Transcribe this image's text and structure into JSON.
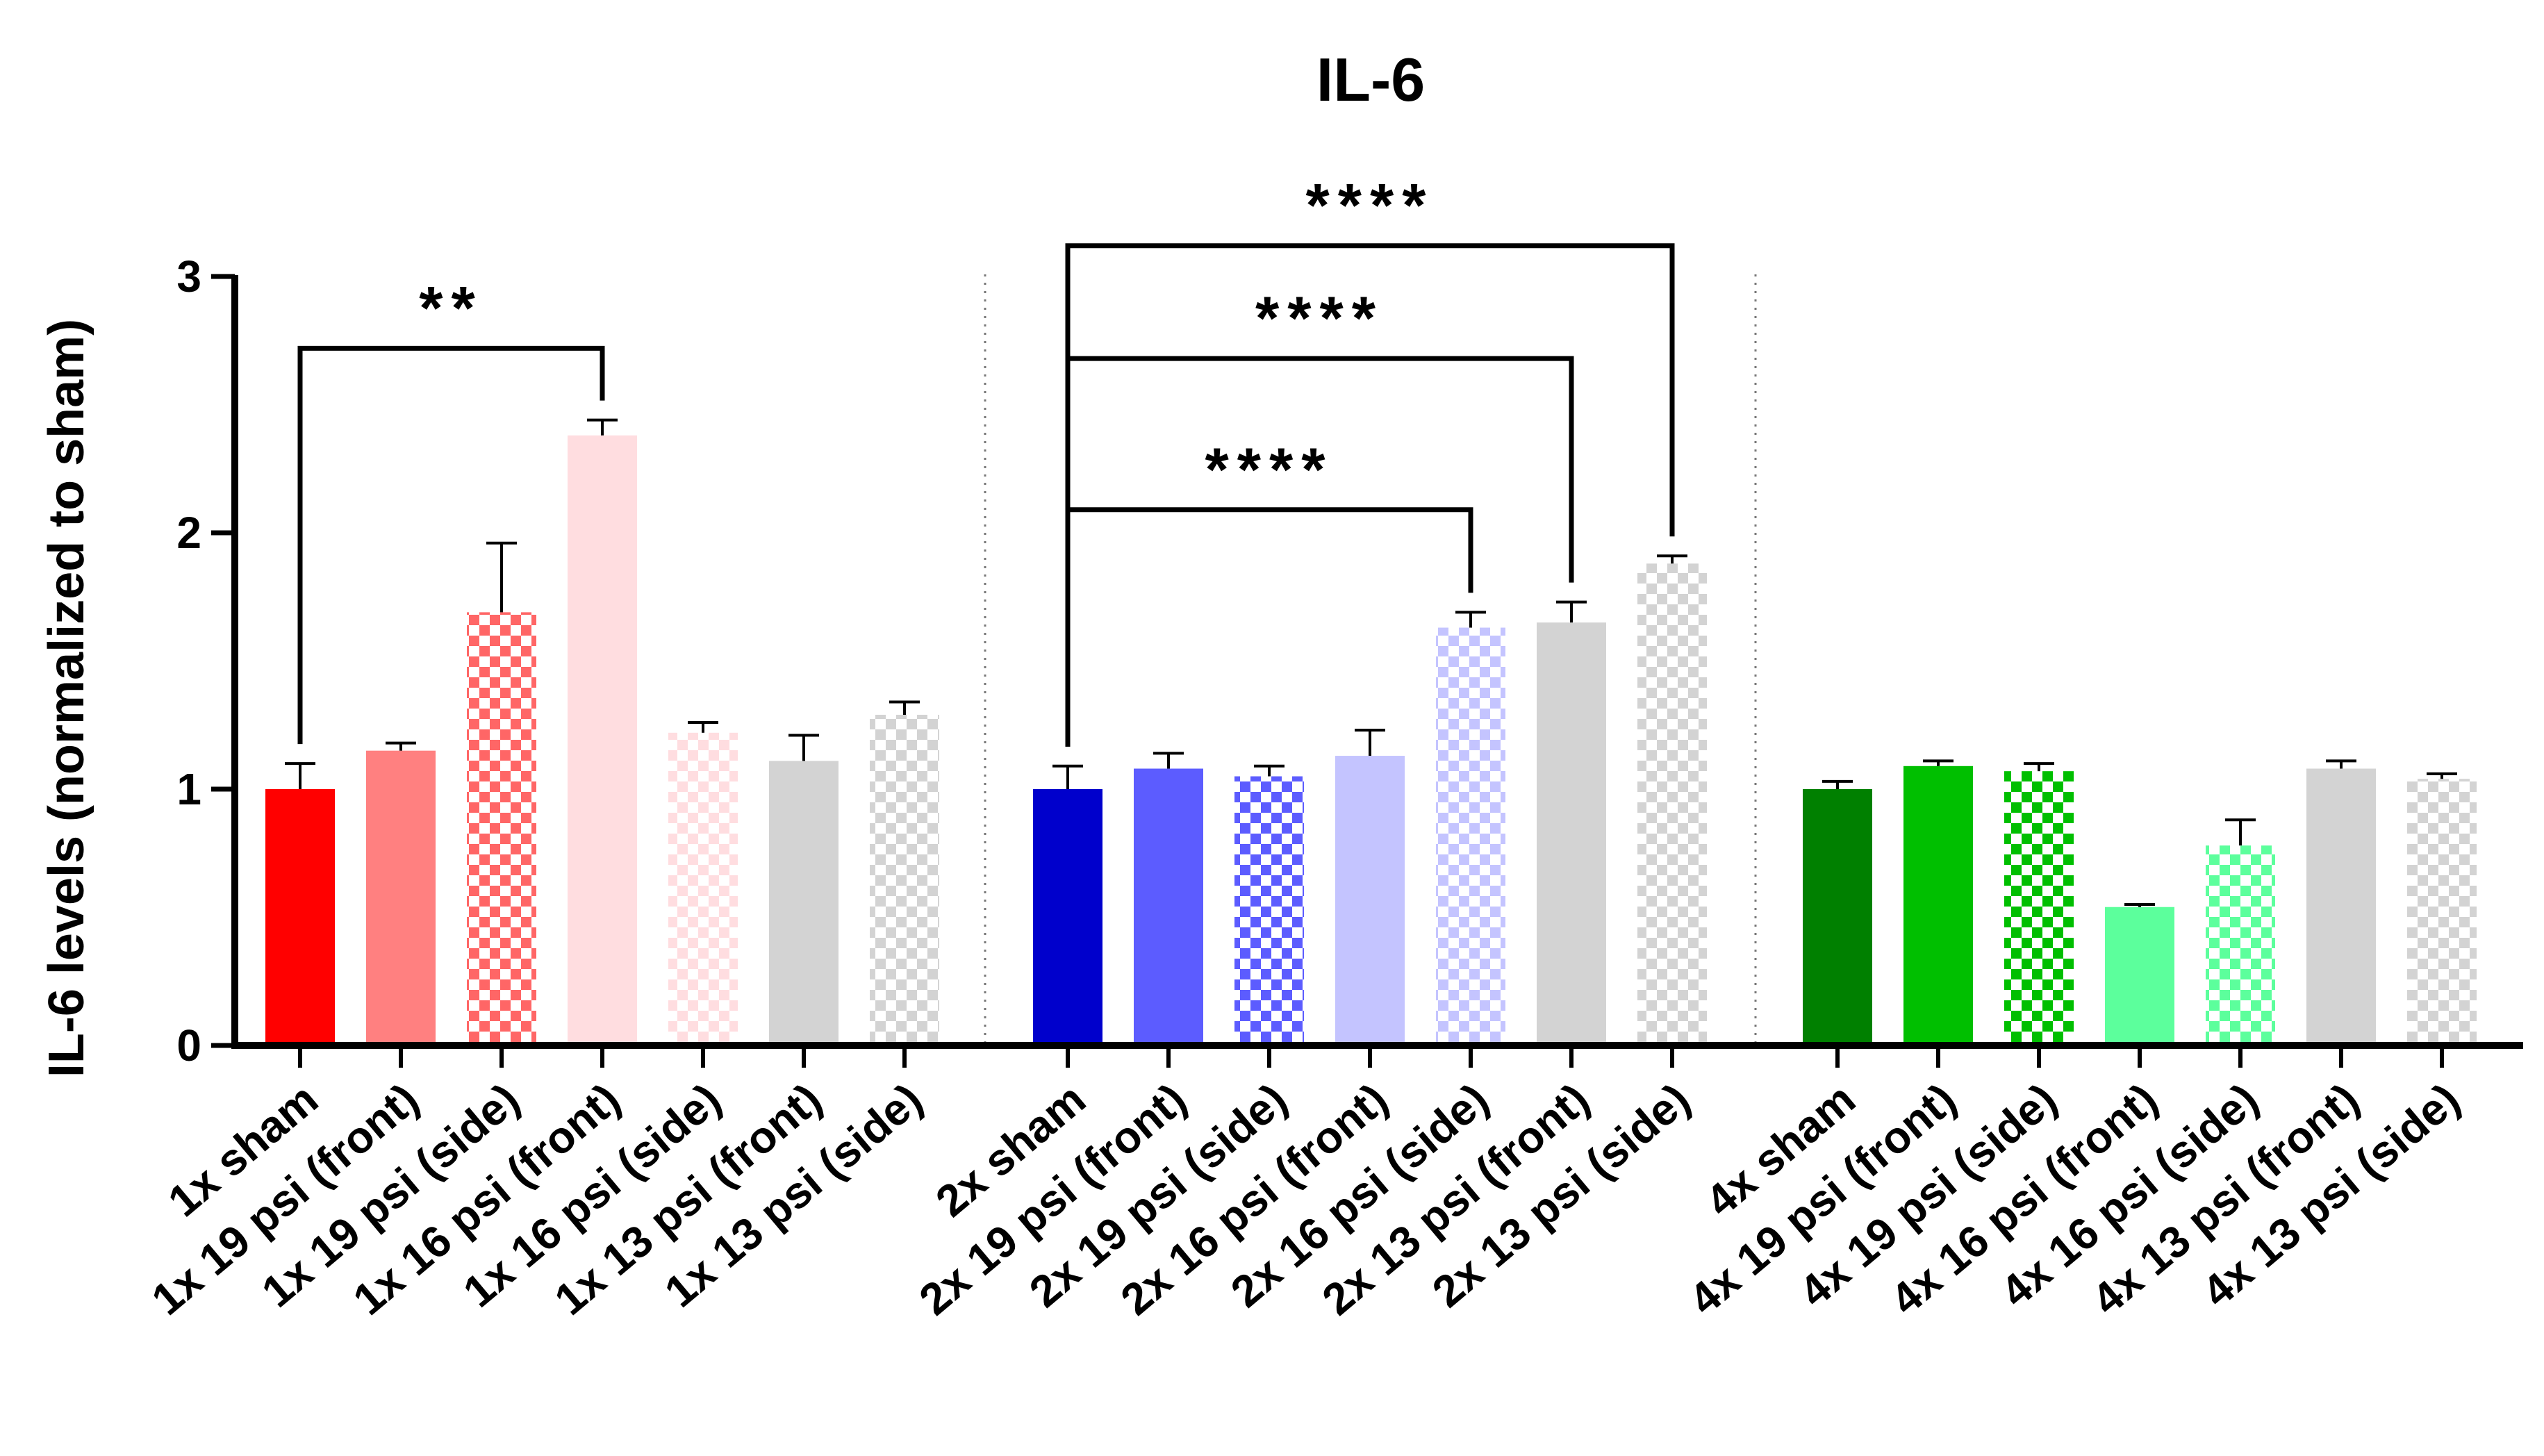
{
  "chart_data": {
    "type": "bar",
    "title": "IL-6",
    "xlabel": "",
    "ylabel": "IL-6 levels (normalized to sham)",
    "ylim": [
      0,
      3
    ],
    "yticks": [
      "0",
      "1",
      "2",
      "3"
    ],
    "grid": false,
    "groups": [
      {
        "name": "1x",
        "categories": [
          "1x sham",
          "1x 19 psi (front)",
          "1x 19 psi (side)",
          "1x 16 psi (front)",
          "1x 16 psi (side)",
          "1x 13 psi (front)",
          "1x 13 psi (side)"
        ],
        "values": [
          1.0,
          1.15,
          1.69,
          2.38,
          1.22,
          1.11,
          1.29
        ],
        "errors": [
          0.1,
          0.03,
          0.27,
          0.06,
          0.04,
          0.1,
          0.05
        ],
        "colors": [
          "#ff0000",
          "#ff8080",
          "#ff6666",
          "#ffdde0",
          "#ffdde0",
          "#d3d3d3",
          "#d3d3d3"
        ],
        "patterns": [
          "solid",
          "solid",
          "checker",
          "solid",
          "checker",
          "solid",
          "checker"
        ]
      },
      {
        "name": "2x",
        "categories": [
          "2x sham",
          "2x 19 psi (front)",
          "2x 19 psi (side)",
          "2x 16 psi (front)",
          "2x 16 psi (side)",
          "2x 13 psi (front)",
          "2x 13 psi (side)"
        ],
        "values": [
          1.0,
          1.08,
          1.05,
          1.13,
          1.63,
          1.65,
          1.88
        ],
        "errors": [
          0.09,
          0.06,
          0.04,
          0.1,
          0.06,
          0.08,
          0.03
        ],
        "colors": [
          "#0000cc",
          "#5c5cff",
          "#5c5cff",
          "#c4c4ff",
          "#c4c4ff",
          "#d3d3d3",
          "#d3d3d3"
        ],
        "patterns": [
          "solid",
          "solid",
          "checker",
          "solid",
          "checker",
          "solid",
          "checker"
        ]
      },
      {
        "name": "4x",
        "categories": [
          "4x sham",
          "4x 19 psi (front)",
          "4x 19 psi (side)",
          "4x 16 psi (front)",
          "4x 16 psi (side)",
          "4x 13 psi (front)",
          "4x 13 psi (side)"
        ],
        "values": [
          1.0,
          1.09,
          1.07,
          0.54,
          0.78,
          1.08,
          1.04
        ],
        "errors": [
          0.03,
          0.02,
          0.03,
          0.01,
          0.1,
          0.03,
          0.02
        ],
        "colors": [
          "#008000",
          "#00bf00",
          "#00bf00",
          "#5cff9c",
          "#5cff9c",
          "#d3d3d3",
          "#d3d3d3"
        ],
        "patterns": [
          "solid",
          "solid",
          "checker",
          "solid",
          "checker",
          "solid",
          "checker"
        ]
      }
    ],
    "significance": [
      {
        "group": 0,
        "from": 0,
        "to": 3,
        "label": "**",
        "level": 2.72
      },
      {
        "group": 1,
        "from": 0,
        "to": 4,
        "label": "****",
        "level": 2.09
      },
      {
        "group": 1,
        "from": 0,
        "to": 5,
        "label": "****",
        "level": 2.68
      },
      {
        "group": 1,
        "from": 0,
        "to": 6,
        "label": "****",
        "level": 3.12
      }
    ]
  }
}
